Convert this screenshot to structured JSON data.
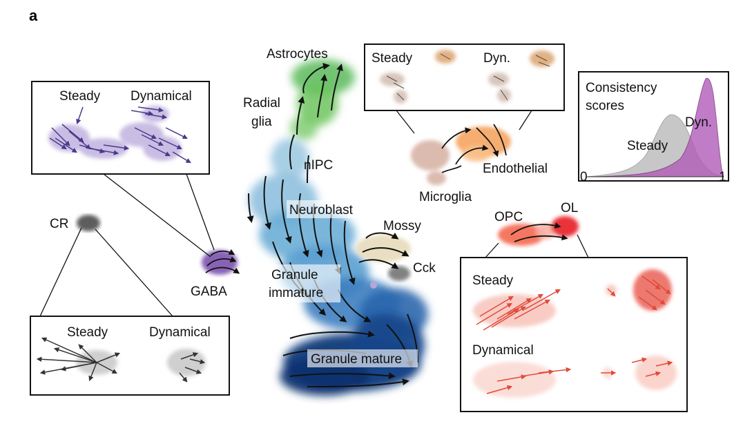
{
  "panel_letter": "a",
  "main_labels": {
    "astrocytes": "Astrocytes",
    "radial_line1": "Radial",
    "radial_line2": "glia",
    "nipc": "nIPC",
    "neuroblast": "Neuroblast",
    "mossy": "Mossy",
    "cck": "Cck",
    "granule_immature_line1": "Granule",
    "granule_immature_line2": "immature",
    "granule_mature": "Granule mature",
    "gaba": "GABA",
    "cr": "CR",
    "microglia": "Microglia",
    "endothelial": "Endothelial",
    "opc": "OPC",
    "ol": "OL"
  },
  "insets": {
    "gaba": {
      "left": "Steady",
      "right": "Dynamical"
    },
    "cr": {
      "left": "Steady",
      "right": "Dynamical"
    },
    "endo": {
      "left": "Steady",
      "right": "Dyn."
    },
    "ol": {
      "top": "Steady",
      "bottom": "Dynamical"
    },
    "consistency": {
      "title_line1": "Consistency",
      "title_line2": "scores",
      "steady": "Steady",
      "dyn": "Dyn.",
      "axis_min": "0",
      "axis_max": "1"
    }
  },
  "colors": {
    "astrocytes": "#4daf4a",
    "neuroblast": "#6baed6",
    "granule_mature": "#08306b",
    "gaba": "#7b52ae",
    "cr": "#444444",
    "endothelial": "#f4a460",
    "microglia": "#d8b4a6",
    "opc": "#f4705a",
    "ol": "#e8282e",
    "mossy": "#e8dcbf",
    "consistency_steady": "#b5b5b5",
    "consistency_dyn": "#b15cb8"
  }
}
